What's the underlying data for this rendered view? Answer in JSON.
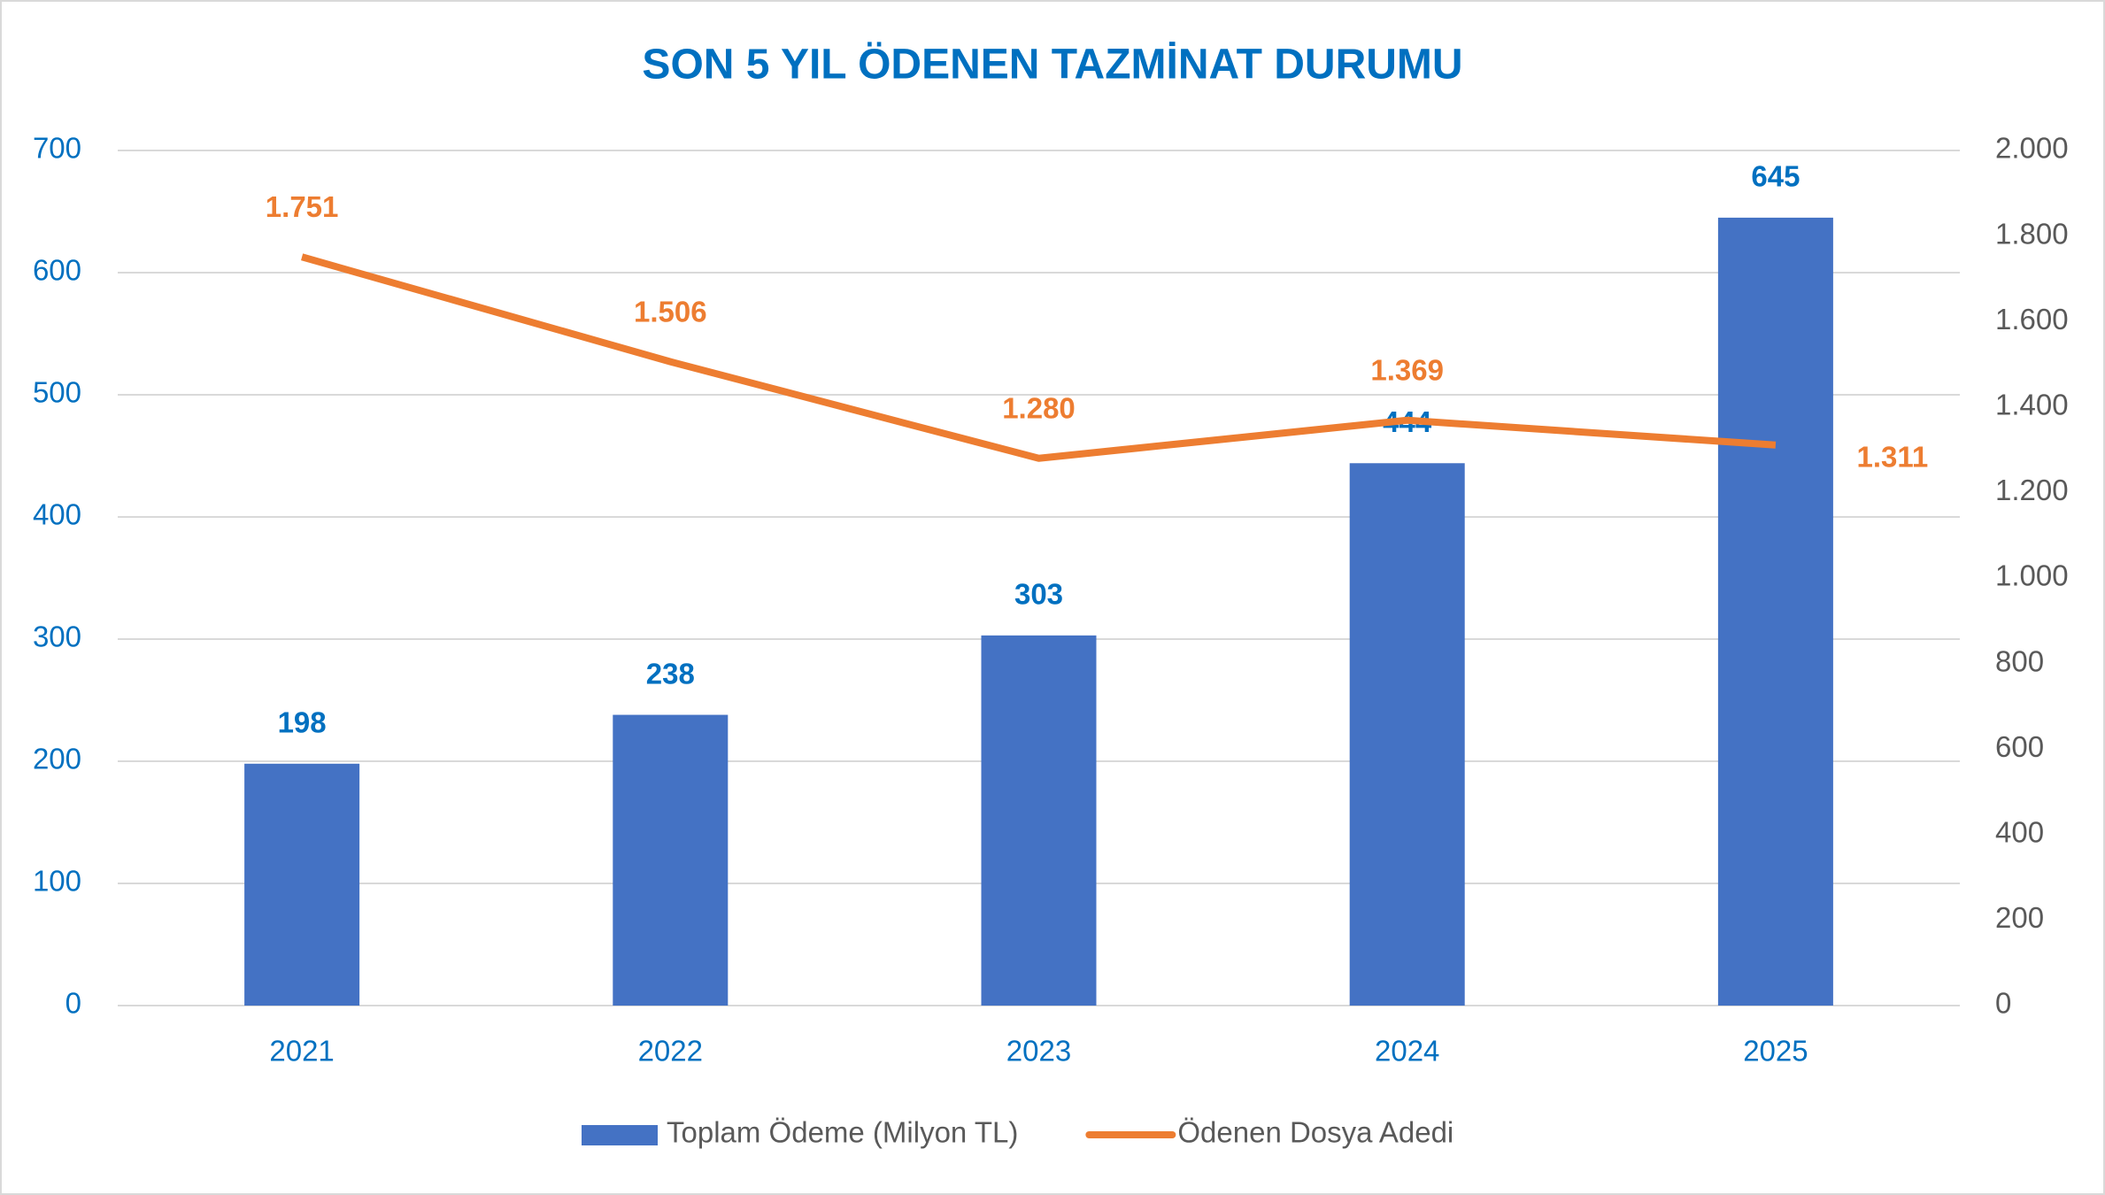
{
  "chart_data": {
    "type": "bar-line",
    "title": "SON 5 YIL ÖDENEN TAZMİNAT DURUMU",
    "categories": [
      "2021",
      "2022",
      "2023",
      "2024",
      "2025"
    ],
    "series": [
      {
        "name": "Toplam Ödeme (Milyon TL)",
        "type": "bar",
        "color": "#4472c4",
        "values": [
          198,
          238,
          303,
          444,
          645
        ]
      },
      {
        "name": "Ödenen Dosya Adedi",
        "type": "line",
        "color": "#ed7d31",
        "axis": "y2",
        "values": [
          1751,
          1506,
          1280,
          1369,
          1311
        ],
        "value_labels": [
          "1.751",
          "1.506",
          "1.280",
          "1.369",
          "1.311"
        ]
      }
    ],
    "ylim": [
      0,
      700
    ],
    "yticks": [
      0,
      100,
      200,
      300,
      400,
      500,
      600,
      700
    ],
    "y2lim": [
      0,
      2000
    ],
    "y2ticks": [
      0,
      200,
      400,
      600,
      800,
      {
        "value": 1000,
        "label": "1.000"
      },
      {
        "value": 1200,
        "label": "1.200"
      },
      {
        "value": 1400,
        "label": "1.400"
      },
      {
        "value": 1600,
        "label": "1.600"
      },
      {
        "value": 1800,
        "label": "1.800"
      },
      {
        "value": 2000,
        "label": "2.000"
      }
    ],
    "grid": true,
    "legend": "bottom"
  }
}
